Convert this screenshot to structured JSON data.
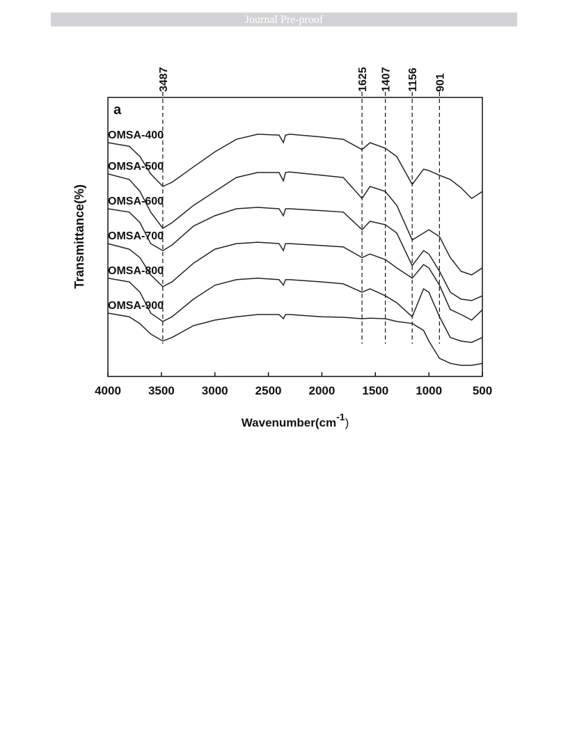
{
  "header": {
    "title": "Journal Pre-proof"
  },
  "chart_data": {
    "type": "line",
    "panel_label": "a",
    "xlabel": "Wavenumber(cm",
    "xlabel_sup": "-1",
    "xlabel_end": ")",
    "ylabel": "Transmittance(%)",
    "xlim": [
      4000,
      500
    ],
    "xticks": [
      4000,
      3500,
      3000,
      2500,
      2000,
      1500,
      1000,
      500
    ],
    "ylim": [
      0,
      100
    ],
    "reference_lines": [
      3487,
      1625,
      1407,
      1156,
      901
    ],
    "x": [
      4000,
      3800,
      3700,
      3600,
      3487,
      3400,
      3200,
      3000,
      2800,
      2600,
      2400,
      2360,
      2340,
      2300,
      2000,
      1800,
      1625,
      1550,
      1407,
      1300,
      1156,
      1050,
      1000,
      901,
      800,
      700,
      600,
      500
    ],
    "series": [
      {
        "name": "OMSA-400",
        "color": "#222222",
        "values": [
          83.8,
          82.5,
          78.8,
          72.6,
          68.1,
          69.6,
          75.1,
          80.5,
          85.0,
          86.8,
          86.5,
          83.8,
          86.5,
          86.8,
          85.8,
          85.0,
          81.3,
          83.8,
          81.8,
          78.8,
          68.8,
          74.3,
          73.8,
          72.1,
          70.6,
          67.6,
          63.8,
          66.3
        ]
      },
      {
        "name": "OMSA-500",
        "color": "#222222",
        "values": [
          72.6,
          70.6,
          66.3,
          58.9,
          53.1,
          55.1,
          61.3,
          66.3,
          71.3,
          73.1,
          73.1,
          70.1,
          73.1,
          73.3,
          72.1,
          71.3,
          63.8,
          68.1,
          66.3,
          61.3,
          48.9,
          51.4,
          52.6,
          50.1,
          42.6,
          37.7,
          36.4,
          38.9
        ]
      },
      {
        "name": "OMSA-600",
        "color": "#222222",
        "values": [
          60.1,
          58.9,
          55.1,
          47.6,
          45.1,
          47.1,
          53.9,
          57.6,
          60.1,
          60.6,
          60.1,
          57.6,
          60.1,
          60.1,
          59.4,
          58.9,
          52.6,
          55.6,
          54.4,
          51.4,
          39.7,
          45.1,
          43.9,
          37.7,
          30.2,
          27.7,
          27.2,
          28.9
        ]
      },
      {
        "name": "OMSA-700",
        "color": "#222222",
        "values": [
          47.6,
          45.6,
          42.6,
          36.4,
          32.2,
          33.9,
          40.6,
          45.6,
          47.6,
          48.1,
          47.6,
          45.1,
          47.6,
          47.6,
          46.9,
          46.4,
          42.6,
          43.9,
          41.9,
          38.9,
          35.2,
          40.1,
          38.9,
          32.7,
          24.0,
          22.2,
          20.2,
          23.9
        ]
      },
      {
        "name": "OMSA-800",
        "color": "#222222",
        "values": [
          35.2,
          33.9,
          30.2,
          22.7,
          19.7,
          21.4,
          27.7,
          32.7,
          34.7,
          35.2,
          34.7,
          32.7,
          34.7,
          34.7,
          33.9,
          33.2,
          30.2,
          31.4,
          28.9,
          26.4,
          21.4,
          31.4,
          30.2,
          21.4,
          14.0,
          12.7,
          12.2,
          14.0
        ]
      },
      {
        "name": "OMSA-900",
        "color": "#222222",
        "values": [
          22.7,
          21.4,
          18.9,
          15.2,
          12.7,
          14.0,
          18.2,
          20.2,
          21.4,
          22.2,
          22.2,
          20.7,
          22.2,
          22.2,
          21.4,
          21.2,
          20.7,
          20.9,
          20.7,
          19.7,
          19.0,
          16.5,
          12.7,
          6.5,
          4.7,
          4.0,
          4.0,
          4.7
        ]
      }
    ]
  }
}
